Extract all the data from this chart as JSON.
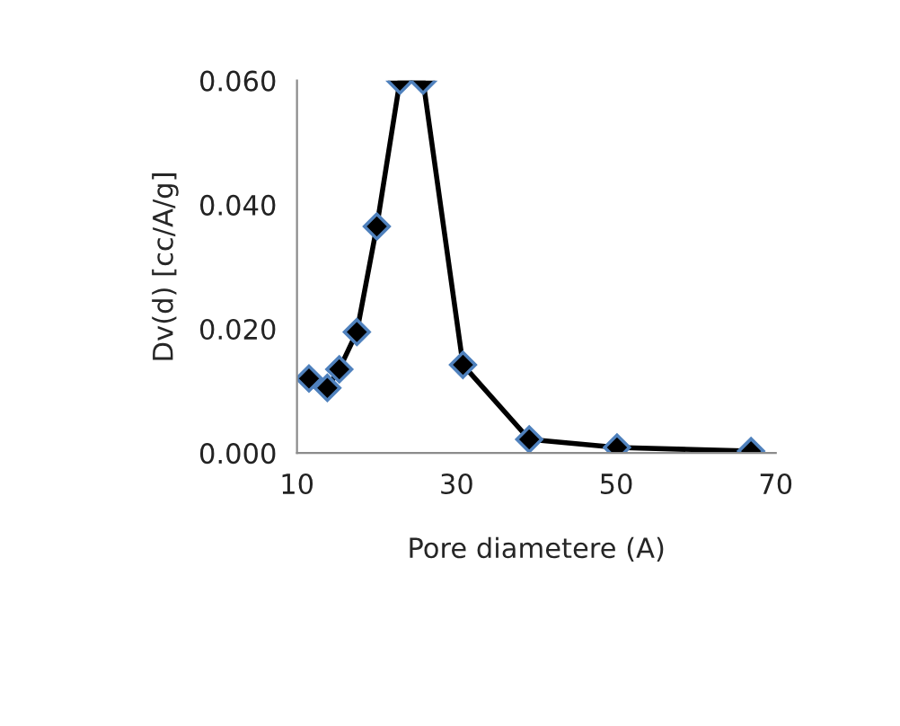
{
  "chart_data": {
    "type": "line",
    "xlabel": "Pore diametere (A)",
    "ylabel": "Dv(d) [cc/A/g]",
    "x": [
      11.5,
      13.8,
      15.3,
      17.5,
      20.0,
      22.9,
      25.8,
      30.8,
      39.1,
      50.1,
      66.9
    ],
    "series": [
      {
        "color": "#000000",
        "values": [
          0.012,
          0.0105,
          0.0135,
          0.0195,
          0.0365,
          0.06,
          0.06,
          0.0142,
          0.0022,
          0.0009,
          0.0003
        ]
      }
    ],
    "xlim": [
      10,
      70
    ],
    "xticks": [
      10,
      30,
      50,
      70
    ],
    "ylim": [
      0,
      0.06
    ],
    "yticks": [
      {
        "value": 0,
        "label": "0.000"
      },
      {
        "value": 0.02,
        "label": "0.020"
      },
      {
        "value": 0.04,
        "label": "0.040"
      },
      {
        "value": 0.06,
        "label": "0.060"
      }
    ],
    "marker": "diamond",
    "line_style": "solid",
    "grid": false,
    "legend": false
  }
}
